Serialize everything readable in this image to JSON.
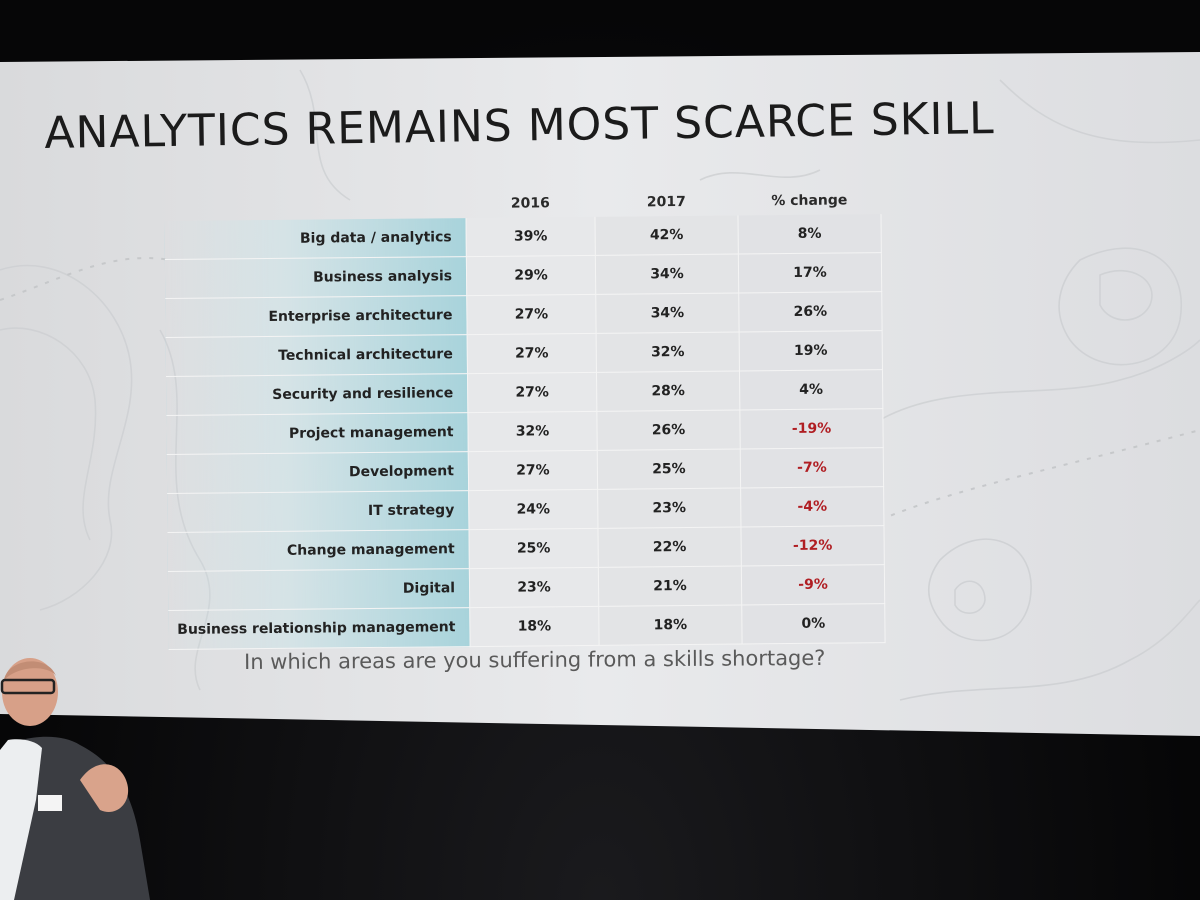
{
  "slide": {
    "title": "ANALYTICS REMAINS MOST SCARCE SKILL",
    "question": "In which areas are you suffering from a skills shortage?",
    "columns": [
      "2016",
      "2017",
      "% change"
    ],
    "rows": [
      {
        "label": "Big data / analytics",
        "y2016": "39%",
        "y2017": "42%",
        "change": "8%",
        "negative": false
      },
      {
        "label": "Business analysis",
        "y2016": "29%",
        "y2017": "34%",
        "change": "17%",
        "negative": false
      },
      {
        "label": "Enterprise architecture",
        "y2016": "27%",
        "y2017": "34%",
        "change": "26%",
        "negative": false
      },
      {
        "label": "Technical architecture",
        "y2016": "27%",
        "y2017": "32%",
        "change": "19%",
        "negative": false
      },
      {
        "label": "Security and resilience",
        "y2016": "27%",
        "y2017": "28%",
        "change": "4%",
        "negative": false
      },
      {
        "label": "Project management",
        "y2016": "32%",
        "y2017": "26%",
        "change": "-19%",
        "negative": true
      },
      {
        "label": "Development",
        "y2016": "27%",
        "y2017": "25%",
        "change": "-7%",
        "negative": true
      },
      {
        "label": "IT strategy",
        "y2016": "24%",
        "y2017": "23%",
        "change": "-4%",
        "negative": true
      },
      {
        "label": "Change management",
        "y2016": "25%",
        "y2017": "22%",
        "change": "-12%",
        "negative": true
      },
      {
        "label": "Digital",
        "y2016": "23%",
        "y2017": "21%",
        "change": "-9%",
        "negative": true
      },
      {
        "label": "Business relationship management",
        "y2016": "18%",
        "y2017": "18%",
        "change": "0%",
        "negative": false
      }
    ]
  },
  "colors": {
    "negative": "#b01e23",
    "label_gradient_end": "#a8d3db",
    "screen": "#e6e7e9"
  }
}
